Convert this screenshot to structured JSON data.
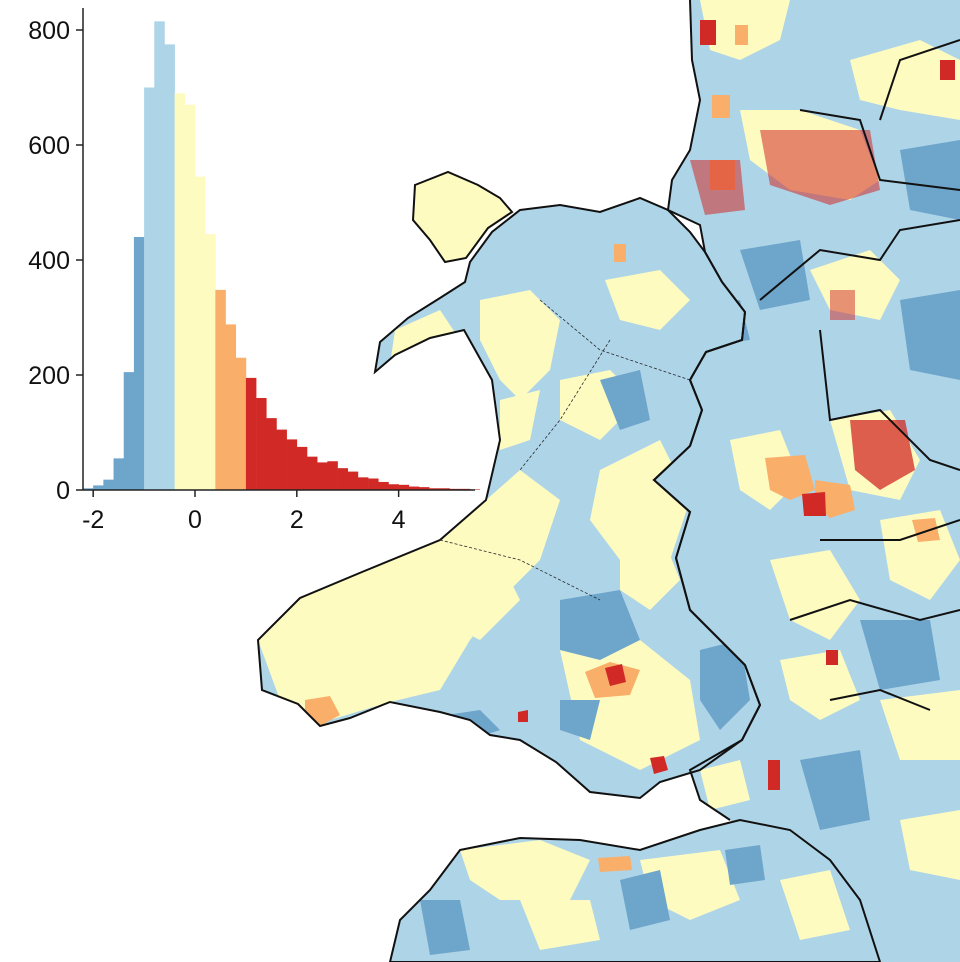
{
  "chart_data": {
    "type": "bar",
    "title": "",
    "xlabel": "",
    "ylabel": "",
    "xlim": [
      -2.2,
      5.5
    ],
    "ylim": [
      0,
      820
    ],
    "xticks": [
      "-2",
      "0",
      "2",
      "4"
    ],
    "yticks": [
      "0",
      "200",
      "400",
      "600",
      "800"
    ],
    "bin_width": 0.2,
    "bins": [
      {
        "x0": -2.2,
        "value": 3,
        "class": 1
      },
      {
        "x0": -2.0,
        "value": 8,
        "class": 1
      },
      {
        "x0": -1.8,
        "value": 18,
        "class": 1
      },
      {
        "x0": -1.6,
        "value": 55,
        "class": 1
      },
      {
        "x0": -1.4,
        "value": 205,
        "class": 1
      },
      {
        "x0": -1.2,
        "value": 440,
        "class": 1
      },
      {
        "x0": -1.0,
        "value": 700,
        "class": 2
      },
      {
        "x0": -0.8,
        "value": 815,
        "class": 2
      },
      {
        "x0": -0.6,
        "value": 775,
        "class": 2
      },
      {
        "x0": -0.4,
        "value": 690,
        "class": 3
      },
      {
        "x0": -0.2,
        "value": 670,
        "class": 3
      },
      {
        "x0": 0.0,
        "value": 545,
        "class": 3
      },
      {
        "x0": 0.2,
        "value": 445,
        "class": 3
      },
      {
        "x0": 0.4,
        "value": 348,
        "class": 4
      },
      {
        "x0": 0.6,
        "value": 288,
        "class": 4
      },
      {
        "x0": 0.8,
        "value": 230,
        "class": 4
      },
      {
        "x0": 1.0,
        "value": 195,
        "class": 5
      },
      {
        "x0": 1.2,
        "value": 160,
        "class": 5
      },
      {
        "x0": 1.4,
        "value": 125,
        "class": 5
      },
      {
        "x0": 1.6,
        "value": 105,
        "class": 5
      },
      {
        "x0": 1.8,
        "value": 88,
        "class": 5
      },
      {
        "x0": 2.0,
        "value": 75,
        "class": 5
      },
      {
        "x0": 2.2,
        "value": 58,
        "class": 5
      },
      {
        "x0": 2.4,
        "value": 48,
        "class": 5
      },
      {
        "x0": 2.6,
        "value": 50,
        "class": 5
      },
      {
        "x0": 2.8,
        "value": 38,
        "class": 5
      },
      {
        "x0": 3.0,
        "value": 32,
        "class": 5
      },
      {
        "x0": 3.2,
        "value": 22,
        "class": 5
      },
      {
        "x0": 3.4,
        "value": 20,
        "class": 5
      },
      {
        "x0": 3.6,
        "value": 14,
        "class": 5
      },
      {
        "x0": 3.8,
        "value": 10,
        "class": 5
      },
      {
        "x0": 4.0,
        "value": 9,
        "class": 5
      },
      {
        "x0": 4.2,
        "value": 6,
        "class": 5
      },
      {
        "x0": 4.4,
        "value": 5,
        "class": 5
      },
      {
        "x0": 4.6,
        "value": 3,
        "class": 5
      },
      {
        "x0": 4.8,
        "value": 3,
        "class": 5
      },
      {
        "x0": 5.0,
        "value": 2,
        "class": 5
      },
      {
        "x0": 5.2,
        "value": 2,
        "class": 5
      },
      {
        "x0": 5.4,
        "value": 1,
        "class": 5
      }
    ],
    "class_colors": {
      "1": "#6ea5cb",
      "2": "#aed4e8",
      "3": "#fdfbc0",
      "4": "#f9ae6a",
      "5": "#d12a26"
    }
  },
  "map": {
    "water_color": "#ffffff",
    "boundary_color": "#111111",
    "palette": [
      "#6ea5cb",
      "#aed4e8",
      "#fdfbc0",
      "#f9ae6a",
      "#d12a26"
    ]
  }
}
